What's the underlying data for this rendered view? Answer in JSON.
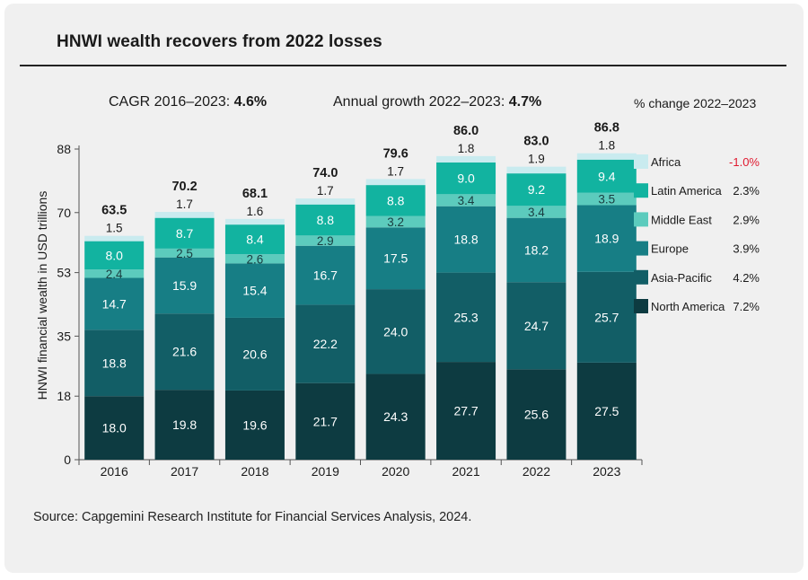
{
  "title": "HNWI wealth recovers from 2022 losses",
  "subtitles": {
    "cagr_label": "CAGR 2016–2023: ",
    "cagr_value": "4.6%",
    "growth_label": "Annual growth 2022–2023: ",
    "growth_value": "4.7%",
    "pct_change_header": "% change 2022–2023"
  },
  "source": "Source: Capgemini Research Institute for Financial Services Analysis, 2024.",
  "chart_data": {
    "type": "bar",
    "stacked": true,
    "categories": [
      "2016",
      "2017",
      "2018",
      "2019",
      "2020",
      "2021",
      "2022",
      "2023"
    ],
    "ylabel": "HNWI financial wealth in USD trillions",
    "xlabel": "",
    "ylim": [
      0,
      88
    ],
    "yticks": [
      0,
      18,
      35,
      53,
      70,
      88
    ],
    "totals": [
      "63.5",
      "70.2",
      "68.1",
      "74.0",
      "79.6",
      "86.0",
      "83.0",
      "86.8"
    ],
    "series": [
      {
        "name": "North America",
        "change": "7.2%",
        "color": "#0d3b41",
        "label_color": "#ffffff",
        "values": [
          18.0,
          19.8,
          19.6,
          21.7,
          24.3,
          27.7,
          25.6,
          27.5
        ],
        "labels": [
          "18.0",
          "19.8",
          "19.6",
          "21.7",
          "24.3",
          "27.7",
          "25.6",
          "27.5"
        ]
      },
      {
        "name": "Asia-Pacific",
        "change": "4.2%",
        "color": "#125e66",
        "label_color": "#ffffff",
        "values": [
          18.8,
          21.6,
          20.6,
          22.2,
          24.0,
          25.3,
          24.7,
          25.7
        ],
        "labels": [
          "18.8",
          "21.6",
          "20.6",
          "22.2",
          "24.0",
          "25.3",
          "24.7",
          "25.7"
        ]
      },
      {
        "name": "Europe",
        "change": "3.9%",
        "color": "#177e85",
        "label_color": "#ffffff",
        "values": [
          14.7,
          15.9,
          15.4,
          16.7,
          17.5,
          18.8,
          18.2,
          18.9
        ],
        "labels": [
          "14.7",
          "15.9",
          "15.4",
          "16.7",
          "17.5",
          "18.8",
          "18.2",
          "18.9"
        ]
      },
      {
        "name": "Middle East",
        "change": "2.9%",
        "color": "#5ccbbd",
        "label_color": "#1a3d40",
        "values": [
          2.4,
          2.5,
          2.6,
          2.9,
          3.2,
          3.4,
          3.4,
          3.5
        ],
        "labels": [
          "2.4",
          "2.5",
          "2.6",
          "2.9",
          "3.2",
          "3.4",
          "3.4",
          "3.5"
        ]
      },
      {
        "name": "Latin America",
        "change": "2.3%",
        "color": "#12b3a0",
        "label_color": "#ffffff",
        "values": [
          8.0,
          8.7,
          8.4,
          8.8,
          8.8,
          9.0,
          9.2,
          9.4
        ],
        "labels": [
          "8.0",
          "8.7",
          "8.4",
          "8.8",
          "8.8",
          "9.0",
          "9.2",
          "9.4"
        ]
      },
      {
        "name": "Africa",
        "change": "-1.0%",
        "color": "#c9ebef",
        "label_color": "#1a1a1a",
        "values": [
          1.5,
          1.7,
          1.6,
          1.7,
          1.7,
          1.8,
          1.9,
          1.8
        ],
        "labels": [
          "1.5",
          "1.7",
          "1.6",
          "1.7",
          "1.7",
          "1.8",
          "1.9",
          "1.8"
        ]
      }
    ],
    "legend": {
      "order": [
        "Africa",
        "Latin America",
        "Middle East",
        "Europe",
        "Asia-Pacific",
        "North America"
      ],
      "position": "right"
    },
    "change_colors": {
      "negative": "#e0192f",
      "positive": "#1a1a1a"
    }
  }
}
